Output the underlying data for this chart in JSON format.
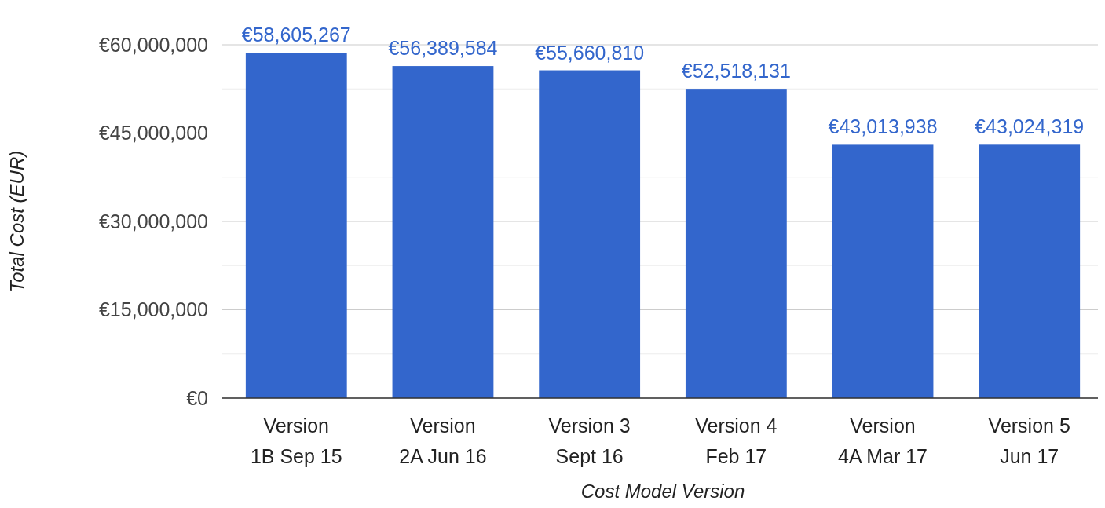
{
  "chart_data": {
    "type": "bar",
    "xlabel": "Cost Model Version",
    "ylabel": "Total Cost (EUR)",
    "categories": [
      "Version\n1B Sep 15",
      "Version\n2A Jun 16",
      "Version 3\nSept 16",
      "Version 4\nFeb 17",
      "Version\n4A Mar 17",
      "Version 5\nJun 17"
    ],
    "values": [
      58605267,
      56389584,
      55660810,
      52518131,
      43013938,
      43024319
    ],
    "value_labels": [
      "€58,605,267",
      "€56,389,584",
      "€55,660,810",
      "€52,518,131",
      "€43,013,938",
      "€43,024,319"
    ],
    "color": "#3366cc",
    "ylim": [
      0,
      60000000
    ],
    "yticks": [
      {
        "value": 0,
        "label": "€0"
      },
      {
        "value": 7500000,
        "label": null
      },
      {
        "value": 15000000,
        "label": "€15,000,000"
      },
      {
        "value": 22500000,
        "label": null
      },
      {
        "value": 30000000,
        "label": "€30,000,000"
      },
      {
        "value": 37500000,
        "label": null
      },
      {
        "value": 45000000,
        "label": "€45,000,000"
      },
      {
        "value": 52500000,
        "label": null
      },
      {
        "value": 60000000,
        "label": "€60,000,000"
      }
    ],
    "grid": "y"
  }
}
